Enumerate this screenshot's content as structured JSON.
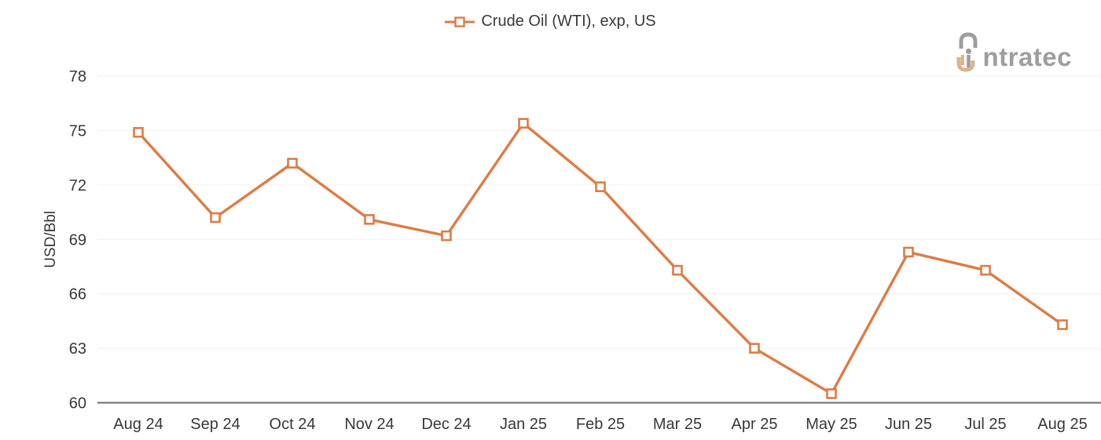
{
  "legend": {
    "label": "Crude Oil (WTI), exp, US"
  },
  "logo": {
    "brand": "intratec",
    "text_after_mark": "ntratec"
  },
  "colors": {
    "series": "#dd7c45",
    "axis_line": "#6b6b6b",
    "gridline": "#f0f0f0",
    "tick_label": "#383838",
    "logo_gray": "#9e9e9e",
    "logo_tan": "#d9b48c"
  },
  "chart_data": {
    "type": "line",
    "title": "",
    "xlabel": "",
    "ylabel": "USD/Bbl",
    "ylim": [
      60,
      78
    ],
    "y_ticks": [
      60,
      63,
      66,
      69,
      72,
      75,
      78
    ],
    "grid": "horizontal",
    "legend_position": "top-center",
    "categories": [
      "Aug 24",
      "Sep 24",
      "Oct 24",
      "Nov 24",
      "Dec 24",
      "Jan 25",
      "Feb 25",
      "Mar 25",
      "Apr 25",
      "May 25",
      "Jun 25",
      "Jul 25",
      "Aug 25"
    ],
    "series": [
      {
        "name": "Crude Oil (WTI), exp, US",
        "color": "#dd7c45",
        "marker": "open-square",
        "values": [
          74.9,
          70.2,
          73.2,
          70.1,
          69.2,
          75.4,
          71.9,
          67.3,
          63.0,
          60.5,
          68.3,
          67.3,
          64.3
        ]
      }
    ]
  }
}
